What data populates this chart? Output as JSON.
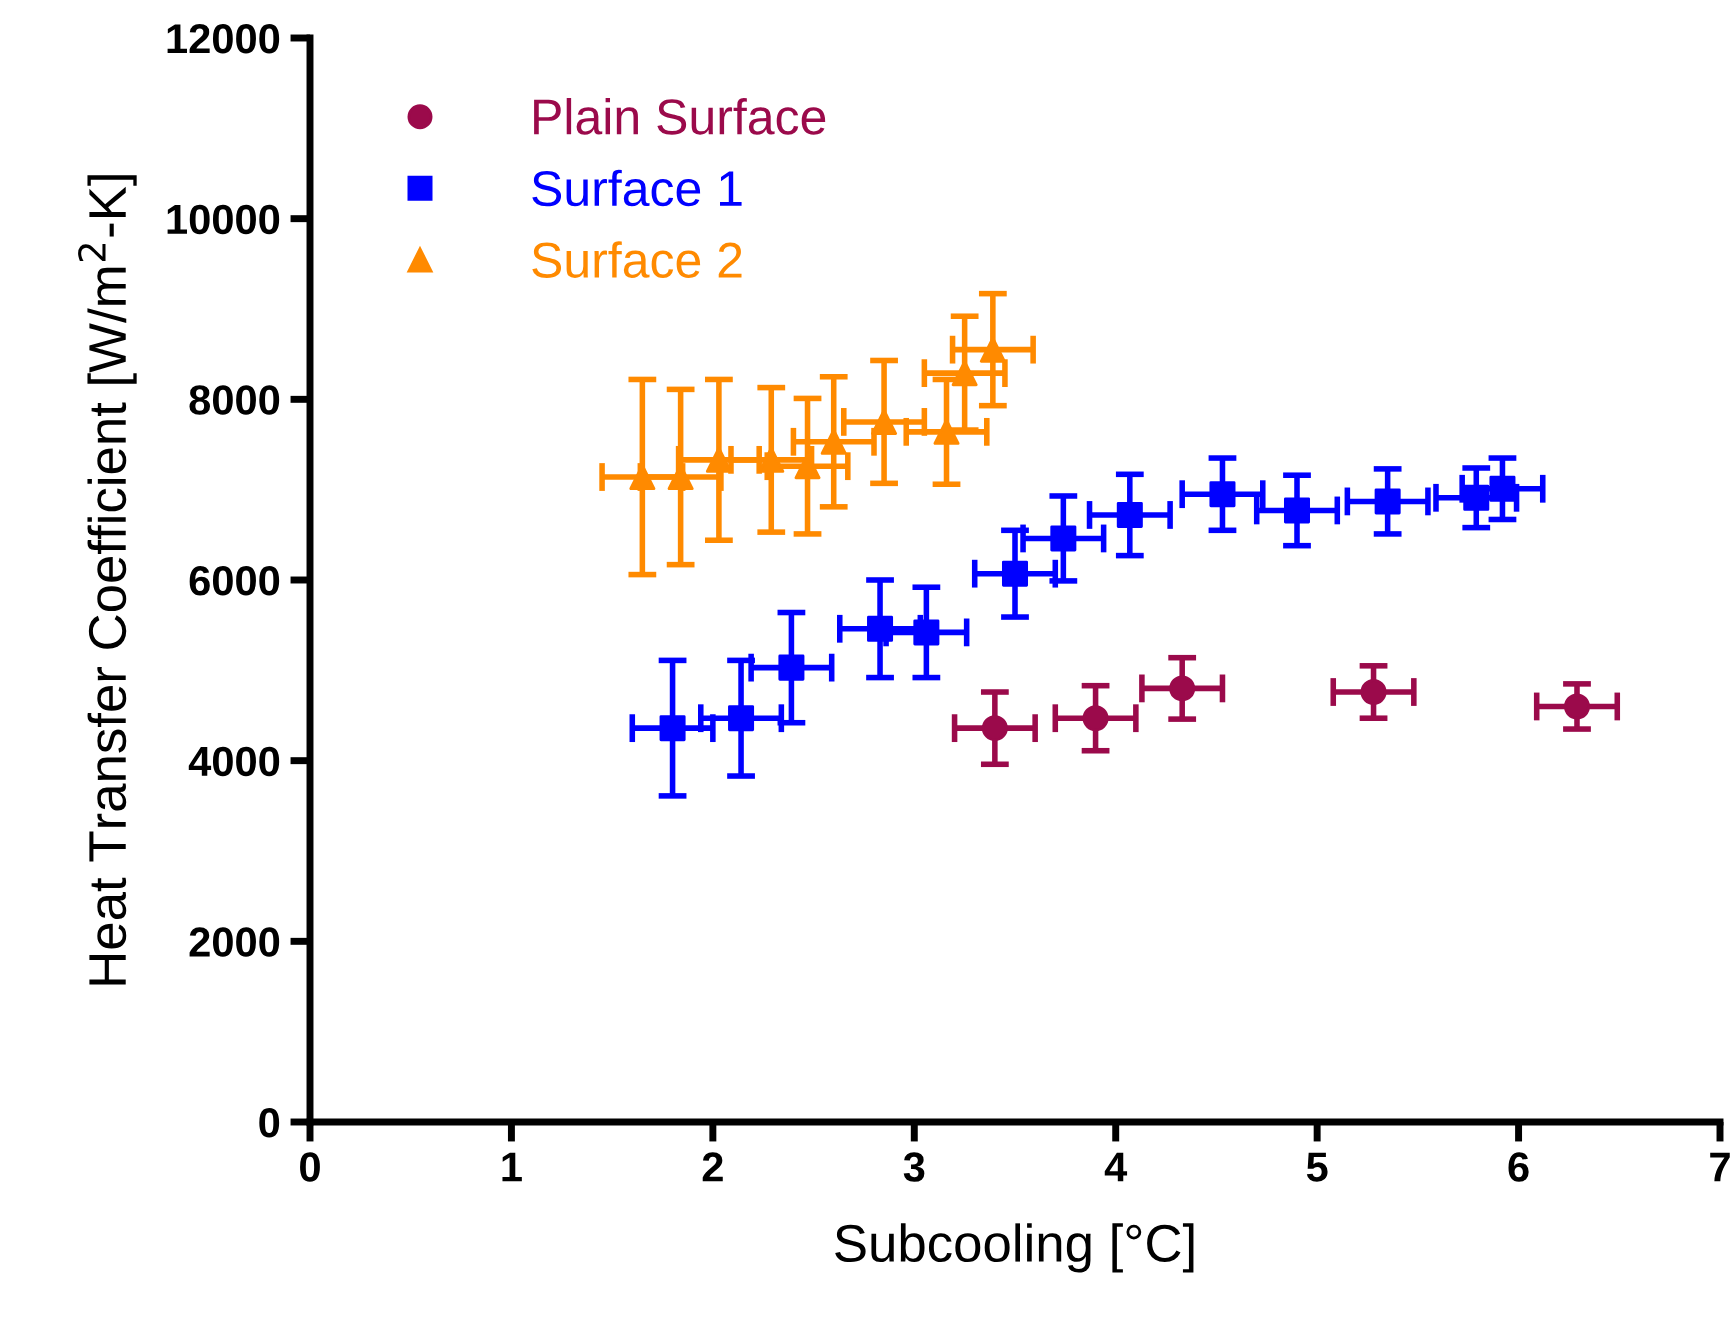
{
  "chart_data": {
    "type": "scatter",
    "xlabel": "Subcooling [°C]",
    "ylabel": "Heat Transfer Coefficient [W/m$^{2}$-K]",
    "xlim": [
      0,
      7
    ],
    "xticks": [
      0,
      1,
      2,
      3,
      4,
      5,
      6,
      7
    ],
    "ylim": [
      0,
      12000
    ],
    "yticks": [
      0,
      2000,
      4000,
      6000,
      8000,
      10000,
      12000
    ],
    "grid": false,
    "legend": "top left",
    "series": [
      {
        "name": "Plain Surface",
        "color": "#9b0a4b",
        "marker": "circle",
        "x": [
          3.4,
          3.9,
          4.33,
          5.28,
          6.29
        ],
        "values": [
          4360,
          4470,
          4800,
          4760,
          4600
        ],
        "errors": [
          400,
          360,
          340,
          290,
          250
        ],
        "xerrors": [
          0.2,
          0.2,
          0.2,
          0.2,
          0.2
        ]
      },
      {
        "name": "Surface 1",
        "color": "#0000ff",
        "marker": "square",
        "x": [
          1.8,
          2.14,
          2.39,
          2.83,
          3.06,
          3.5,
          3.74,
          4.07,
          4.53,
          4.9,
          5.35,
          5.79,
          5.92
        ],
        "values": [
          4360,
          4470,
          5030,
          5460,
          5420,
          6070,
          6460,
          6720,
          6950,
          6770,
          6870,
          6910,
          7010
        ],
        "errors": [
          750,
          640,
          610,
          540,
          500,
          480,
          470,
          450,
          400,
          390,
          360,
          330,
          340
        ],
        "xerrors": [
          0.2,
          0.2,
          0.2,
          0.2,
          0.2,
          0.2,
          0.2,
          0.2,
          0.2,
          0.2,
          0.2,
          0.2,
          0.2
        ]
      },
      {
        "name": "Surface 2",
        "color": "#ff8a00",
        "marker": "triangle",
        "x": [
          1.65,
          1.84,
          2.03,
          2.29,
          2.47,
          2.6,
          2.85,
          3.16,
          3.25,
          3.39
        ],
        "values": [
          7140,
          7140,
          7330,
          7330,
          7260,
          7530,
          7750,
          7640,
          8290,
          8550
        ],
        "errors": [
          1080,
          970,
          890,
          800,
          750,
          720,
          680,
          580,
          630,
          620
        ],
        "xerrors": [
          0.2,
          0.2,
          0.2,
          0.2,
          0.2,
          0.2,
          0.2,
          0.2,
          0.2,
          0.2
        ]
      }
    ]
  }
}
